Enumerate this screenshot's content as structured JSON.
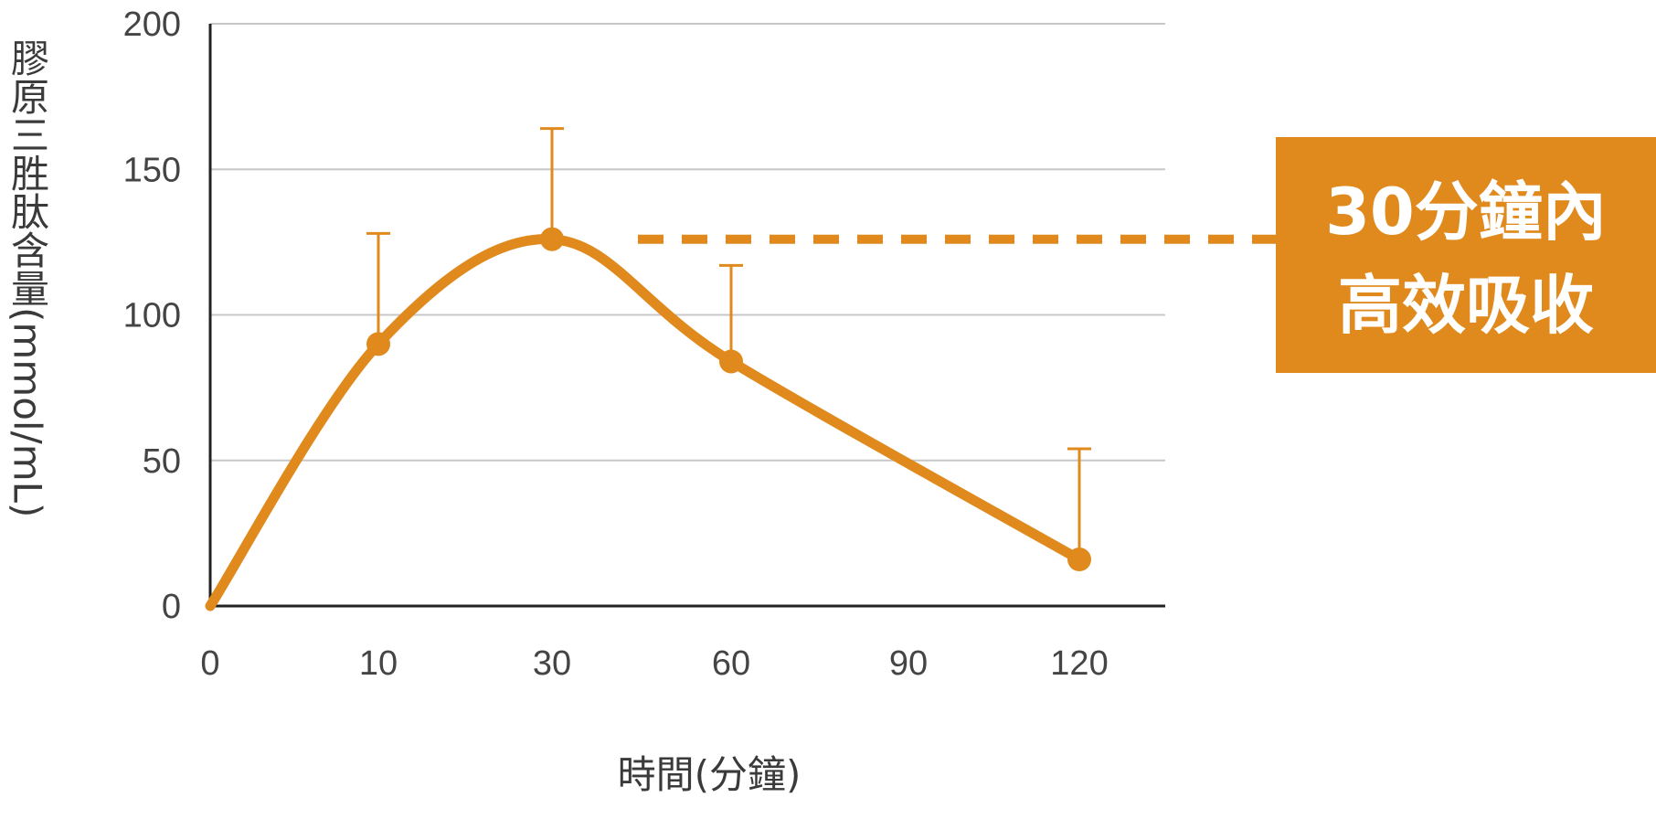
{
  "chart_data": {
    "type": "line",
    "title": "",
    "xlabel": "時間(分鐘)",
    "ylabel": "膠原三胜肽含量(mmol/mL)",
    "categories": [
      "0",
      "10",
      "30",
      "60",
      "90",
      "120"
    ],
    "ylim": [
      0,
      200
    ],
    "yticks": [
      0,
      50,
      100,
      150,
      200
    ],
    "grid": true,
    "series": [
      {
        "x": [
          "0",
          "10",
          "30",
          "60",
          "120"
        ],
        "values": [
          0,
          90,
          126,
          84,
          16
        ],
        "error_upper": [
          null,
          128,
          164,
          117,
          54
        ]
      }
    ],
    "annotation": {
      "lines": [
        "30分鐘內",
        "高效吸收"
      ],
      "value": 126
    }
  },
  "colors": {
    "line": "#E08A1E",
    "callout_bg": "#E08A1E",
    "grid": "#c8c8c8",
    "axis": "#222222",
    "text": "#444444"
  }
}
